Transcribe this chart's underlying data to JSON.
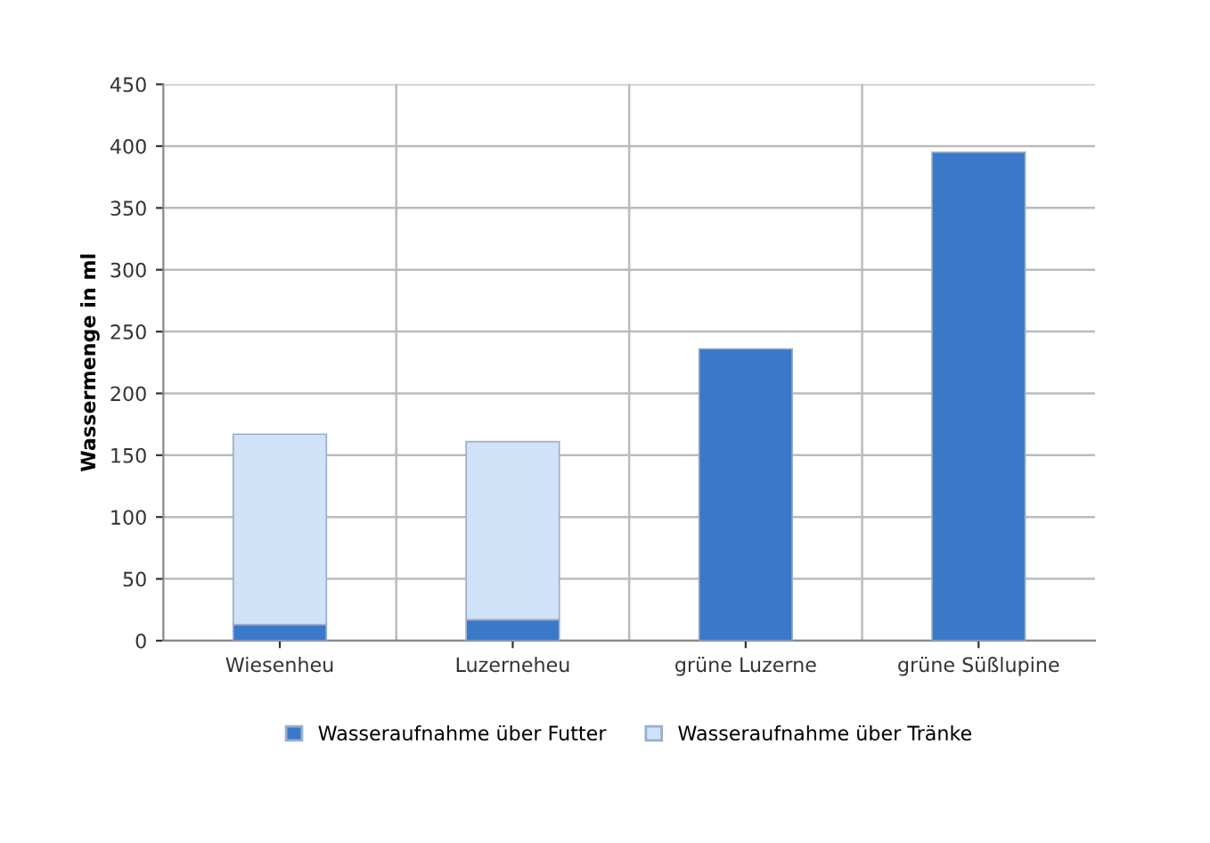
{
  "chart_data": {
    "type": "bar",
    "stacked": true,
    "ylabel": "Wassermenge in ml",
    "categories": [
      "Wiesenheu",
      "Luzerneheu",
      "grüne Luzerne",
      "grüne Süßlupine"
    ],
    "series": [
      {
        "name": "Wasseraufnahme über Futter",
        "color": "#3c78c8",
        "values": [
          13,
          17,
          236,
          395
        ]
      },
      {
        "name": "Wasseraufnahme über Tränke",
        "color": "#d0e2f8",
        "values": [
          154,
          144,
          null,
          null
        ]
      }
    ],
    "ylim": [
      0,
      450
    ],
    "yticks": [
      0,
      50,
      100,
      150,
      200,
      250,
      300,
      350,
      400,
      450
    ],
    "grid": true,
    "legend": "bottom"
  }
}
